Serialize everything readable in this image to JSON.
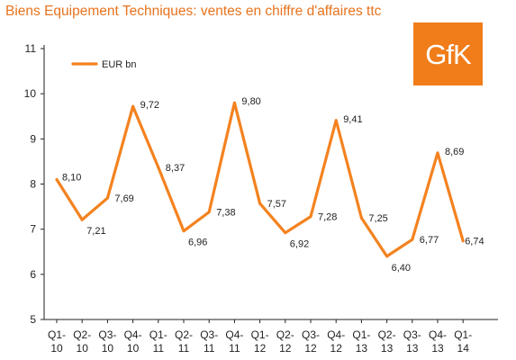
{
  "title": "Biens Equipement Techniques: ventes en chiffre d'affaires ttc",
  "logo": {
    "text": "GfK"
  },
  "colors": {
    "title": "#e8731d",
    "series": "#f4821f",
    "logo_bg": "#f07d1a",
    "axis": "#222222"
  },
  "chart_data": {
    "type": "line",
    "title": "Biens Equipement Techniques: ventes en chiffre d'affaires ttc",
    "xlabel": "",
    "ylabel": "",
    "ylim": [
      5,
      11
    ],
    "yticks": [
      5,
      6,
      7,
      8,
      9,
      10,
      11
    ],
    "grid": false,
    "legend_position": "top-left",
    "categories": [
      [
        "Q1-",
        "10"
      ],
      [
        "Q2-",
        "10"
      ],
      [
        "Q3-",
        "10"
      ],
      [
        "Q4-",
        "10"
      ],
      [
        "Q1-",
        "11"
      ],
      [
        "Q2-",
        "11"
      ],
      [
        "Q3-",
        "11"
      ],
      [
        "Q4-",
        "11"
      ],
      [
        "Q1-",
        "12"
      ],
      [
        "Q2-",
        "12"
      ],
      [
        "Q3-",
        "12"
      ],
      [
        "Q4-",
        "12"
      ],
      [
        "Q1-",
        "13"
      ],
      [
        "Q2-",
        "13"
      ],
      [
        "Q3-",
        "13"
      ],
      [
        "Q4-",
        "13"
      ],
      [
        "Q1-",
        "14"
      ]
    ],
    "series": [
      {
        "name": "EUR bn",
        "values": [
          8.1,
          7.21,
          7.69,
          9.72,
          8.37,
          6.96,
          7.38,
          9.8,
          7.57,
          6.92,
          7.28,
          9.41,
          7.25,
          6.4,
          6.77,
          8.69,
          6.74
        ],
        "labels": [
          "8,10",
          "7,21",
          "7,69",
          "9,72",
          "8,37",
          "6,96",
          "7,38",
          "9,80",
          "7,57",
          "6,92",
          "7,28",
          "9,41",
          "7,25",
          "6,40",
          "6,77",
          "8,69",
          "6,74"
        ]
      }
    ]
  }
}
